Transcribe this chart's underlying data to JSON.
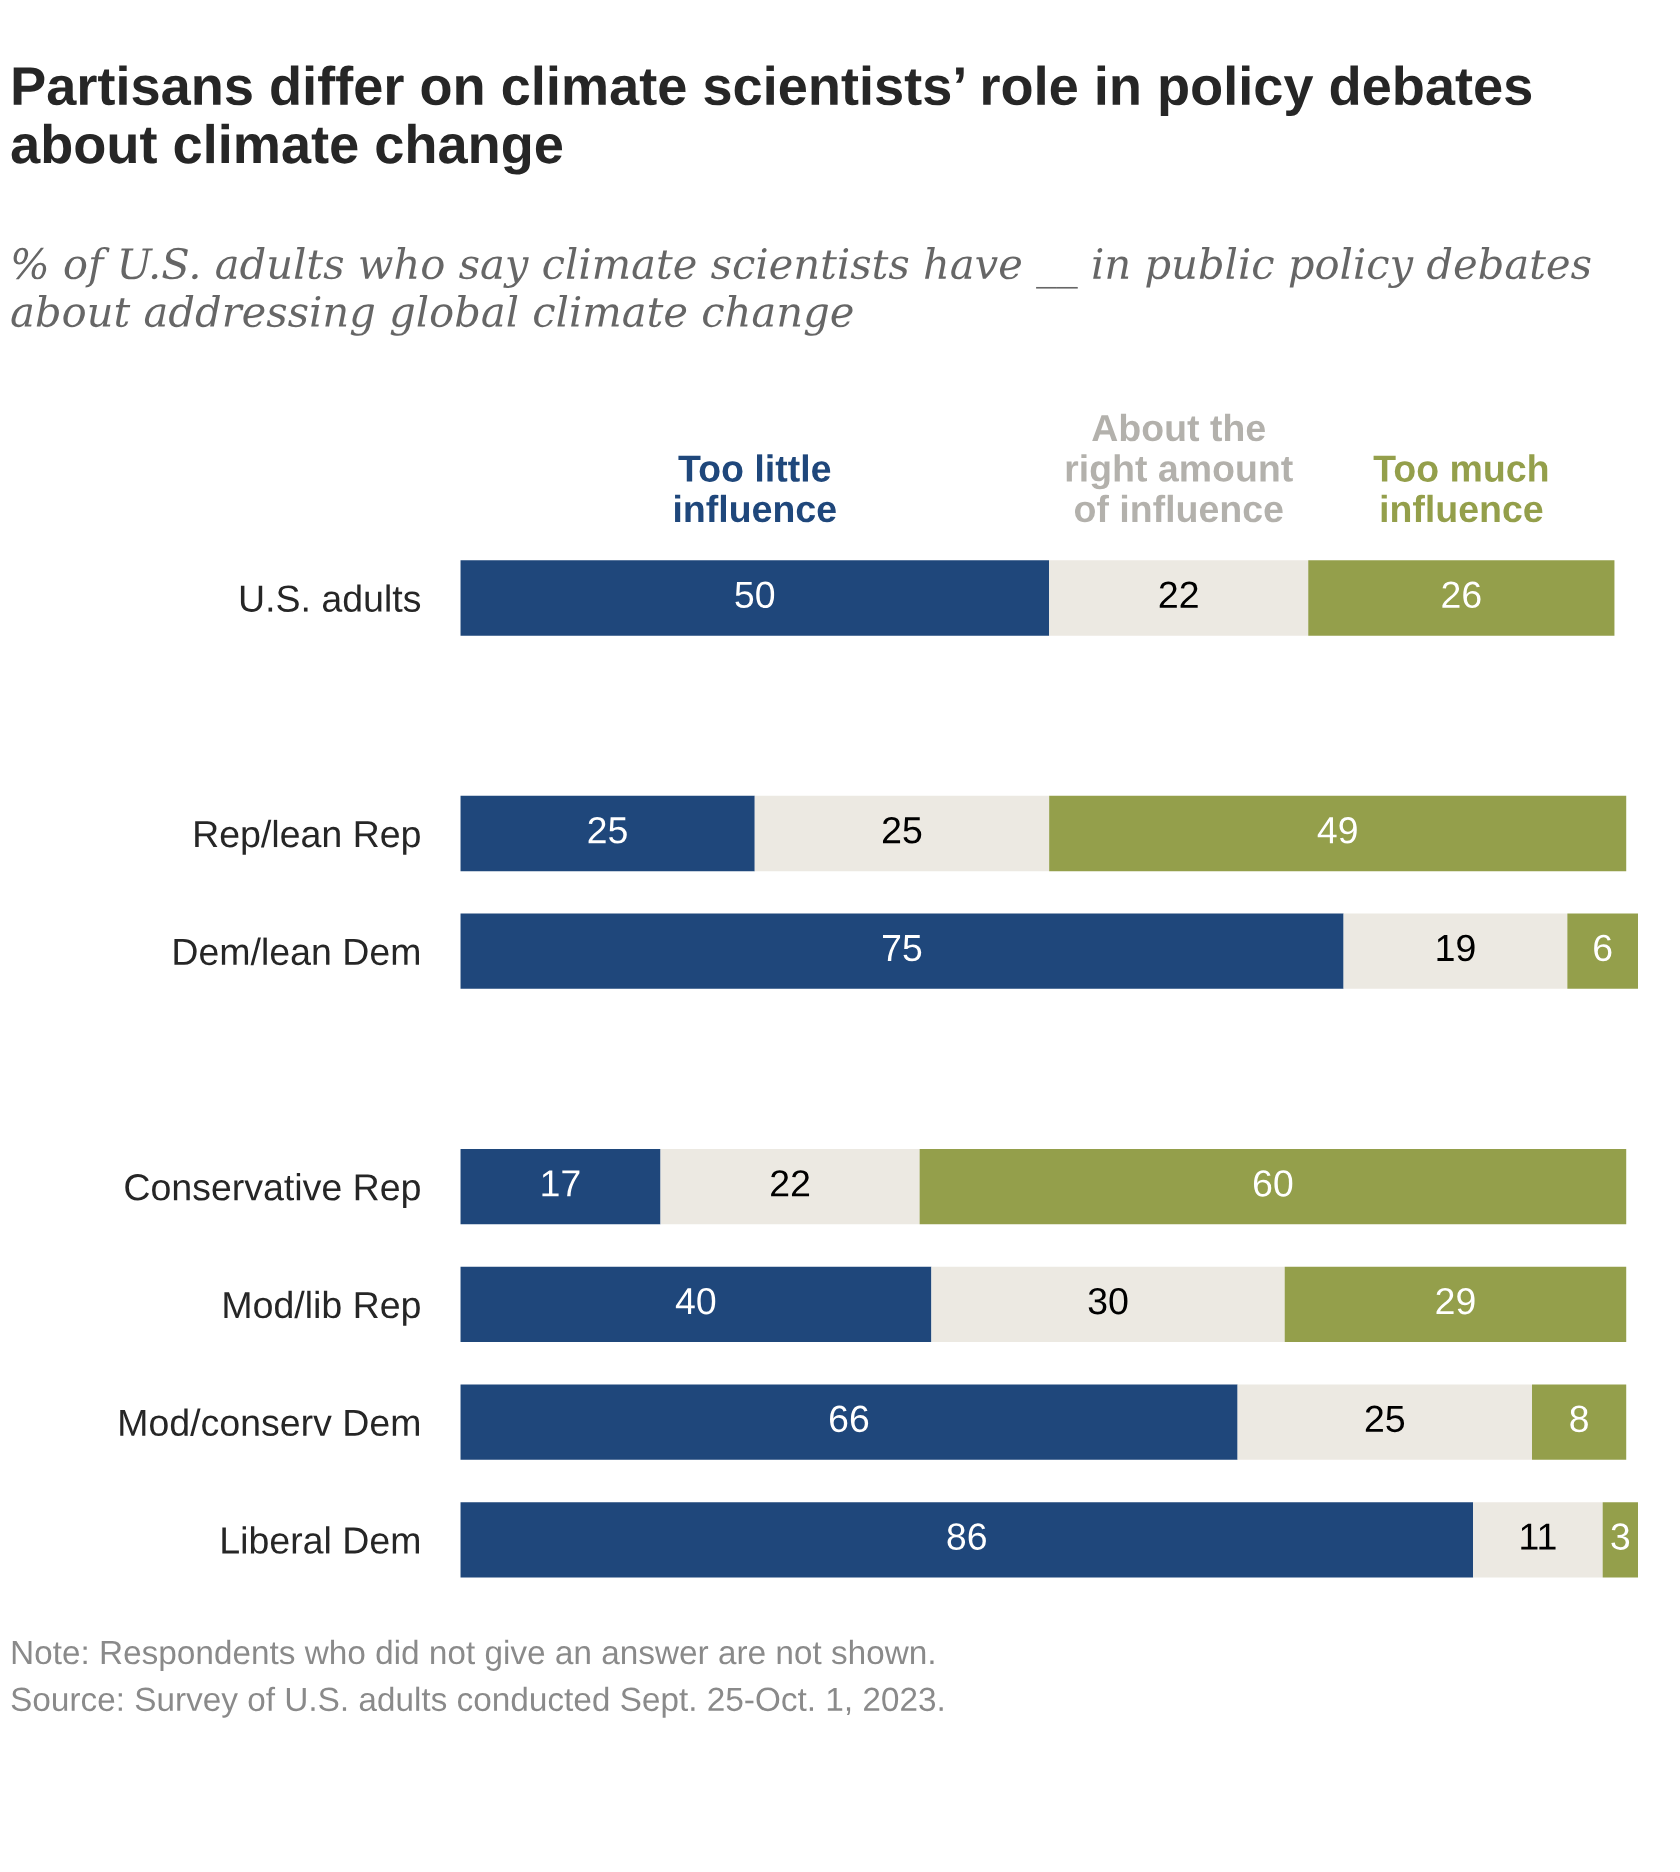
{
  "chart_data": {
    "type": "bar",
    "orientation": "horizontal",
    "stacked": true,
    "title": "Partisans differ on climate scientists’ role in policy debates about climate change",
    "subtitle": "% of U.S. adults who say climate scientists have __ in public policy debates about addressing global climate change",
    "categories": [
      "U.S. adults",
      null,
      "Rep/lean Rep",
      "Dem/lean Dem",
      null,
      "Conservative Rep",
      "Mod/lib Rep",
      "Mod/conserv Dem",
      "Liberal Dem"
    ],
    "series": [
      {
        "name": "Too little influence",
        "color": "#1f477b",
        "values": [
          50,
          null,
          25,
          75,
          null,
          17,
          40,
          66,
          86
        ]
      },
      {
        "name": "About the right amount of influence",
        "color": "#ece9e2",
        "values": [
          22,
          null,
          25,
          19,
          null,
          22,
          30,
          25,
          11
        ]
      },
      {
        "name": "Too much influence",
        "color": "#949f4b",
        "values": [
          26,
          null,
          49,
          6,
          null,
          60,
          29,
          8,
          3
        ]
      }
    ],
    "data_labels": true,
    "legend": "top",
    "grid": false,
    "annotations": [
      "Note: Respondents who did not give an answer are not shown.",
      "Source: Survey of U.S. adults conducted Sept. 25-Oct. 1, 2023."
    ]
  }
}
